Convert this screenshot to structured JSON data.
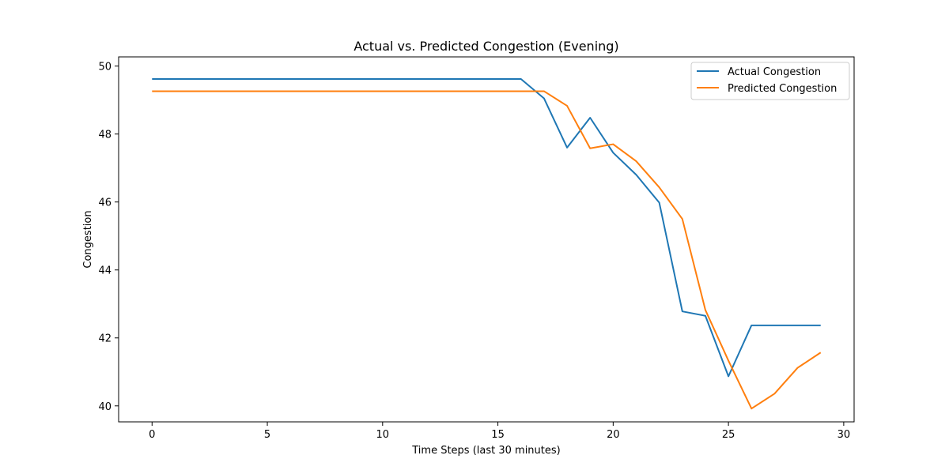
{
  "chart_data": {
    "type": "line",
    "title": "Actual vs. Predicted Congestion (Evening)",
    "xlabel": "Time Steps (last 30 minutes)",
    "ylabel": "Congestion",
    "xlim": [
      -1.45,
      30.45
    ],
    "ylim": [
      39.53,
      50.27
    ],
    "xticks": [
      0,
      5,
      10,
      15,
      20,
      25,
      30
    ],
    "yticks": [
      40,
      42,
      44,
      46,
      48,
      50
    ],
    "grid": false,
    "legend_position": "top-right",
    "x": [
      0,
      1,
      2,
      3,
      4,
      5,
      6,
      7,
      8,
      9,
      10,
      11,
      12,
      13,
      14,
      15,
      16,
      17,
      18,
      19,
      20,
      21,
      22,
      23,
      24,
      25,
      26,
      27,
      28,
      29
    ],
    "series": [
      {
        "name": "Actual Congestion",
        "color": "#1f77b4",
        "values": [
          49.62,
          49.62,
          49.62,
          49.62,
          49.62,
          49.62,
          49.62,
          49.62,
          49.62,
          49.62,
          49.62,
          49.62,
          49.62,
          49.62,
          49.62,
          49.62,
          49.62,
          49.05,
          47.6,
          48.48,
          47.45,
          46.8,
          45.98,
          42.78,
          42.65,
          40.87,
          42.37,
          42.37,
          42.37,
          42.37
        ]
      },
      {
        "name": "Predicted Congestion",
        "color": "#ff7f0e",
        "values": [
          49.26,
          49.26,
          49.26,
          49.26,
          49.26,
          49.26,
          49.26,
          49.26,
          49.26,
          49.26,
          49.26,
          49.26,
          49.26,
          49.26,
          49.26,
          49.26,
          49.26,
          49.26,
          48.83,
          47.58,
          47.7,
          47.2,
          46.43,
          45.5,
          42.82,
          41.33,
          39.92,
          40.36,
          41.12,
          41.57
        ]
      }
    ]
  }
}
